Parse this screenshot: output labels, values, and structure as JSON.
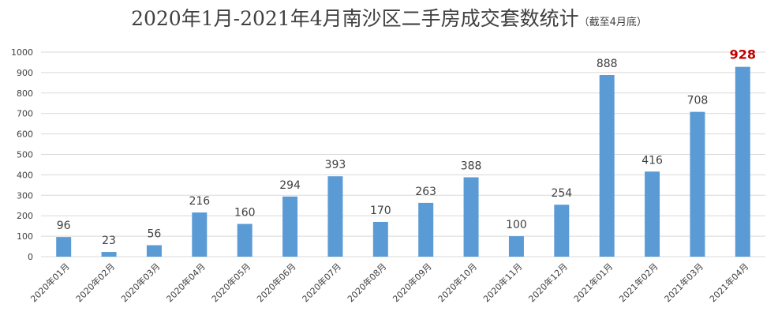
{
  "chart_data": {
    "type": "bar",
    "title": "2020年1月-2021年4月南沙区二手房成交套数统计",
    "subtitle": "（截至4月底）",
    "xlabel": "",
    "ylabel": "",
    "ylim": [
      0,
      1000
    ],
    "yticks": [
      "0",
      "100",
      "200",
      "300",
      "400",
      "500",
      "600",
      "700",
      "800",
      "900",
      "1000"
    ],
    "grid": true,
    "categories": [
      "2020年01月",
      "2020年02月",
      "2020年03月",
      "2020年04月",
      "2020年05月",
      "2020年06月",
      "2020年07月",
      "2020年08月",
      "2020年09月",
      "2020年10月",
      "2020年11月",
      "2020年12月",
      "2021年01月",
      "2021年02月",
      "2021年03月",
      "2021年04月"
    ],
    "values": [
      96,
      23,
      56,
      216,
      160,
      294,
      393,
      170,
      263,
      388,
      100,
      254,
      888,
      416,
      708,
      928
    ],
    "highlight_index": 15,
    "colors": {
      "bar": "#5b9bd5",
      "highlight_label": "#c00000",
      "label": "#404040",
      "grid": "#d9d9d9"
    }
  }
}
